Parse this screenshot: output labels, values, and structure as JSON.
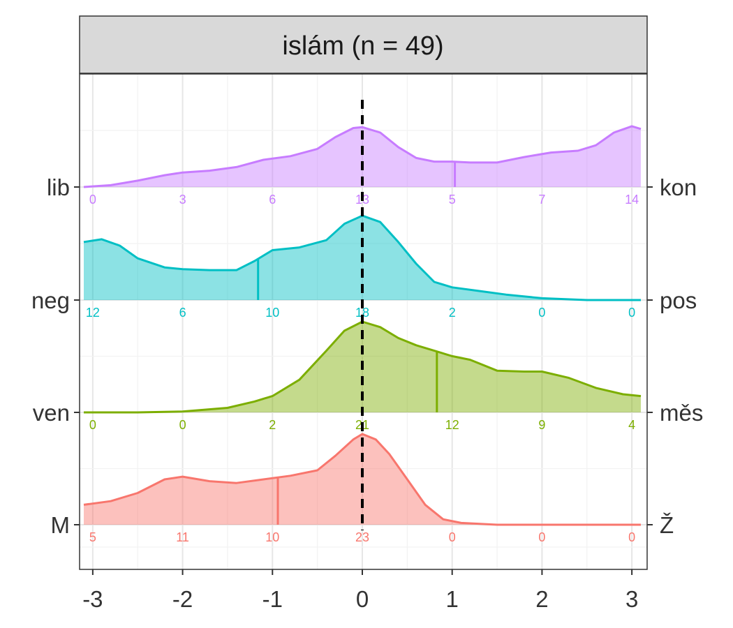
{
  "chart_data": {
    "type": "area",
    "title": "islám (n = 49)",
    "xlabel": "",
    "ylabel": "",
    "x_ticks": [
      -3,
      -2,
      -1,
      0,
      1,
      2,
      3
    ],
    "x_tick_labels": [
      "-3",
      "-2",
      "-1",
      "0",
      "1",
      "2",
      "3"
    ],
    "xlim": [
      -3.1,
      3.1
    ],
    "reference_line_x": 0,
    "count_positions": [
      -3,
      -2,
      -1,
      0,
      1,
      2,
      3
    ],
    "grid": true,
    "series": [
      {
        "left_label": "M",
        "right_label": "Ž",
        "color": "#F8766D",
        "fill": "#F8766D",
        "mean": -0.94,
        "counts": [
          "5",
          "11",
          "10",
          "23",
          "0",
          "0",
          "0"
        ],
        "density": [
          [
            -3.1,
            0.22
          ],
          [
            -2.8,
            0.26
          ],
          [
            -2.5,
            0.35
          ],
          [
            -2.2,
            0.5
          ],
          [
            -2.0,
            0.53
          ],
          [
            -1.7,
            0.48
          ],
          [
            -1.4,
            0.46
          ],
          [
            -1.1,
            0.5
          ],
          [
            -0.8,
            0.54
          ],
          [
            -0.5,
            0.6
          ],
          [
            -0.3,
            0.76
          ],
          [
            -0.1,
            0.94
          ],
          [
            0.0,
            1.0
          ],
          [
            0.15,
            0.94
          ],
          [
            0.3,
            0.78
          ],
          [
            0.5,
            0.5
          ],
          [
            0.7,
            0.22
          ],
          [
            0.9,
            0.06
          ],
          [
            1.1,
            0.02
          ],
          [
            1.5,
            0.0
          ],
          [
            2.0,
            0.0
          ],
          [
            2.5,
            0.0
          ],
          [
            3.1,
            0.0
          ]
        ]
      },
      {
        "left_label": "ven",
        "right_label": "měs",
        "color": "#7CAE00",
        "fill": "#7CAE00",
        "mean": 0.83,
        "counts": [
          "0",
          "0",
          "2",
          "21",
          "12",
          "9",
          "4"
        ],
        "density": [
          [
            -3.1,
            0.0
          ],
          [
            -2.5,
            0.0
          ],
          [
            -2.0,
            0.01
          ],
          [
            -1.5,
            0.05
          ],
          [
            -1.2,
            0.12
          ],
          [
            -1.0,
            0.18
          ],
          [
            -0.7,
            0.36
          ],
          [
            -0.4,
            0.68
          ],
          [
            -0.2,
            0.9
          ],
          [
            0.0,
            1.0
          ],
          [
            0.2,
            0.94
          ],
          [
            0.4,
            0.82
          ],
          [
            0.6,
            0.74
          ],
          [
            0.8,
            0.68
          ],
          [
            1.0,
            0.62
          ],
          [
            1.2,
            0.58
          ],
          [
            1.5,
            0.46
          ],
          [
            1.8,
            0.45
          ],
          [
            2.0,
            0.45
          ],
          [
            2.3,
            0.38
          ],
          [
            2.6,
            0.27
          ],
          [
            2.9,
            0.2
          ],
          [
            3.1,
            0.18
          ]
        ]
      },
      {
        "left_label": "neg",
        "right_label": "pos",
        "color": "#00BFC4",
        "fill": "#00BFC4",
        "mean": -1.16,
        "counts": [
          "12",
          "6",
          "10",
          "18",
          "2",
          "0",
          "0"
        ],
        "density": [
          [
            -3.1,
            0.64
          ],
          [
            -2.9,
            0.67
          ],
          [
            -2.7,
            0.6
          ],
          [
            -2.5,
            0.46
          ],
          [
            -2.2,
            0.36
          ],
          [
            -2.0,
            0.34
          ],
          [
            -1.7,
            0.33
          ],
          [
            -1.4,
            0.33
          ],
          [
            -1.2,
            0.43
          ],
          [
            -1.0,
            0.55
          ],
          [
            -0.7,
            0.58
          ],
          [
            -0.4,
            0.66
          ],
          [
            -0.2,
            0.84
          ],
          [
            0.0,
            0.93
          ],
          [
            0.2,
            0.86
          ],
          [
            0.4,
            0.64
          ],
          [
            0.6,
            0.4
          ],
          [
            0.8,
            0.2
          ],
          [
            1.0,
            0.14
          ],
          [
            1.3,
            0.1
          ],
          [
            1.6,
            0.06
          ],
          [
            2.0,
            0.02
          ],
          [
            2.5,
            0.0
          ],
          [
            3.1,
            0.0
          ]
        ]
      },
      {
        "left_label": "lib",
        "right_label": "kon",
        "color": "#C77CFF",
        "fill": "#C77CFF",
        "mean": 1.03,
        "counts": [
          "0",
          "3",
          "6",
          "13",
          "5",
          "7",
          "14"
        ],
        "density": [
          [
            -3.1,
            0.0
          ],
          [
            -2.8,
            0.02
          ],
          [
            -2.5,
            0.07
          ],
          [
            -2.2,
            0.13
          ],
          [
            -2.0,
            0.16
          ],
          [
            -1.7,
            0.18
          ],
          [
            -1.4,
            0.22
          ],
          [
            -1.1,
            0.3
          ],
          [
            -0.8,
            0.34
          ],
          [
            -0.5,
            0.42
          ],
          [
            -0.3,
            0.55
          ],
          [
            -0.1,
            0.65
          ],
          [
            0.0,
            0.66
          ],
          [
            0.2,
            0.6
          ],
          [
            0.4,
            0.44
          ],
          [
            0.6,
            0.32
          ],
          [
            0.8,
            0.28
          ],
          [
            1.0,
            0.28
          ],
          [
            1.2,
            0.27
          ],
          [
            1.5,
            0.27
          ],
          [
            1.8,
            0.33
          ],
          [
            2.1,
            0.38
          ],
          [
            2.4,
            0.4
          ],
          [
            2.6,
            0.46
          ],
          [
            2.8,
            0.6
          ],
          [
            3.0,
            0.67
          ],
          [
            3.1,
            0.64
          ]
        ]
      }
    ]
  }
}
